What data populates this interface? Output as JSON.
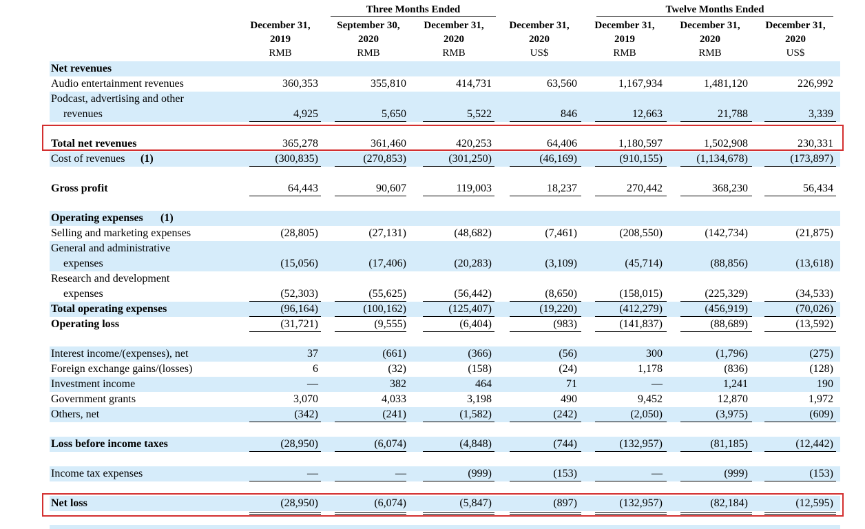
{
  "header": {
    "group_three": "Three Months Ended",
    "group_twelve": "Twelve Months Ended",
    "columns": [
      {
        "line1": "December 31,",
        "line2": "2019",
        "cur": "RMB"
      },
      {
        "line1": "September 30,",
        "line2": "2020",
        "cur": "RMB"
      },
      {
        "line1": "December 31,",
        "line2": "2020",
        "cur": "RMB"
      },
      {
        "line1": "December 31,",
        "line2": "2020",
        "cur": "US$"
      },
      {
        "line1": "December 31,",
        "line2": "2019",
        "cur": "RMB"
      },
      {
        "line1": "December 31,",
        "line2": "2020",
        "cur": "RMB"
      },
      {
        "line1": "December 31,",
        "line2": "2020",
        "cur": "US$"
      }
    ]
  },
  "rows": {
    "net_revenues_title": "Net revenues",
    "audio": {
      "label": "Audio entertainment revenues",
      "v": [
        "360,353",
        "355,810",
        "414,731",
        "63,560",
        "1,167,934",
        "1,481,120",
        "226,992"
      ]
    },
    "podcast": {
      "label1": "Podcast, advertising and other",
      "label2": "revenues",
      "v": [
        "4,925",
        "5,650",
        "5,522",
        "846",
        "12,663",
        "21,788",
        "3,339"
      ]
    },
    "total_net": {
      "label": "Total net revenues",
      "v": [
        "365,278",
        "361,460",
        "420,253",
        "64,406",
        "1,180,597",
        "1,502,908",
        "230,331"
      ]
    },
    "cost": {
      "label": "Cost of revenues",
      "note": "(1)",
      "v": [
        "(300,835)",
        "(270,853)",
        "(301,250)",
        "(46,169)",
        "(910,155)",
        "(1,134,678)",
        "(173,897)"
      ]
    },
    "gross": {
      "label": "Gross profit",
      "v": [
        "64,443",
        "90,607",
        "119,003",
        "18,237",
        "270,442",
        "368,230",
        "56,434"
      ]
    },
    "opex_title": {
      "label": "Operating expenses",
      "note": "(1)"
    },
    "selling": {
      "label": "Selling and marketing expenses",
      "v": [
        "(28,805)",
        "(27,131)",
        "(48,682)",
        "(7,461)",
        "(208,550)",
        "(142,734)",
        "(21,875)"
      ]
    },
    "ga": {
      "label1": "General and administrative",
      "label2": "expenses",
      "v": [
        "(15,056)",
        "(17,406)",
        "(20,283)",
        "(3,109)",
        "(45,714)",
        "(88,856)",
        "(13,618)"
      ]
    },
    "rd": {
      "label1": "Research and development",
      "label2": "expenses",
      "v": [
        "(52,303)",
        "(55,625)",
        "(56,442)",
        "(8,650)",
        "(158,015)",
        "(225,329)",
        "(34,533)"
      ]
    },
    "total_opex": {
      "label": "Total operating expenses",
      "v": [
        "(96,164)",
        "(100,162)",
        "(125,407)",
        "(19,220)",
        "(412,279)",
        "(456,919)",
        "(70,026)"
      ]
    },
    "op_loss": {
      "label": "Operating loss",
      "v": [
        "(31,721)",
        "(9,555)",
        "(6,404)",
        "(983)",
        "(141,837)",
        "(88,689)",
        "(13,592)"
      ]
    },
    "interest": {
      "label": "Interest income/(expenses), net",
      "v": [
        "37",
        "(661)",
        "(366)",
        "(56)",
        "300",
        "(1,796)",
        "(275)"
      ]
    },
    "fx": {
      "label": "Foreign exchange gains/(losses)",
      "v": [
        "6",
        "(32)",
        "(158)",
        "(24)",
        "1,178",
        "(836)",
        "(128)"
      ]
    },
    "investment": {
      "label": "Investment income",
      "v": [
        "—",
        "382",
        "464",
        "71",
        "—",
        "1,241",
        "190"
      ]
    },
    "grants": {
      "label": "Government grants",
      "v": [
        "3,070",
        "4,033",
        "3,198",
        "490",
        "9,452",
        "12,870",
        "1,972"
      ]
    },
    "others": {
      "label": "Others, net",
      "v": [
        "(342)",
        "(241)",
        "(1,582)",
        "(242)",
        "(2,050)",
        "(3,975)",
        "(609)"
      ]
    },
    "lbt": {
      "label": "Loss before income taxes",
      "v": [
        "(28,950)",
        "(6,074)",
        "(4,848)",
        "(744)",
        "(132,957)",
        "(81,185)",
        "(12,442)"
      ]
    },
    "tax": {
      "label": "Income tax expenses",
      "v": [
        "—",
        "—",
        "(999)",
        "(153)",
        "—",
        "(999)",
        "(153)"
      ]
    },
    "net_loss": {
      "label": "Net loss",
      "v": [
        "(28,950)",
        "(6,074)",
        "(5,847)",
        "(897)",
        "(132,957)",
        "(82,184)",
        "(12,595)"
      ]
    }
  },
  "colors": {
    "shade": "#d6ecfa",
    "highlight": "#d32f2f"
  }
}
